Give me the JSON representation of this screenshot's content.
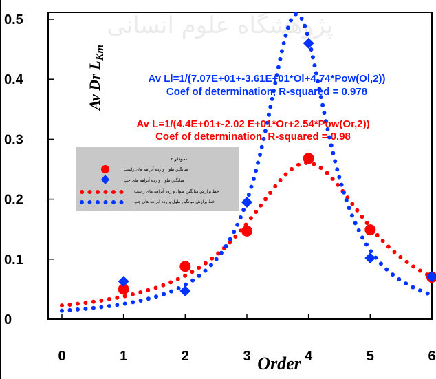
{
  "chart_data": {
    "type": "scatter",
    "xlabel": "Order",
    "ylabel_main": "Av Dr L",
    "ylabel_sub": "Km",
    "xlim": [
      0,
      6
    ],
    "ylim": [
      0,
      0.5
    ],
    "x_ticks": [
      0,
      1,
      2,
      3,
      4,
      5,
      6
    ],
    "y_ticks": [
      0,
      0.1,
      0.2,
      0.3,
      0.4,
      0.5
    ],
    "y_tick_labels": [
      "0",
      "0.1",
      "0.2",
      "0.3",
      "0.4",
      "0.5"
    ],
    "grid": false,
    "series": [
      {
        "key": "right_points",
        "name": "میانگین طول و رده آبراهه های راست",
        "marker": "circle",
        "color": "#ff0000",
        "x": [
          1,
          2,
          3,
          4,
          5,
          6
        ],
        "y": [
          0.05,
          0.088,
          0.147,
          0.268,
          0.149,
          0.07
        ]
      },
      {
        "key": "left_points",
        "name": "میانگین طول و رده آبراهه های چپ",
        "marker": "diamond",
        "color": "#0033ff",
        "x": [
          1,
          2,
          3,
          4,
          5,
          6
        ],
        "y": [
          0.063,
          0.047,
          0.195,
          0.46,
          0.102,
          0.071
        ]
      },
      {
        "key": "right_fit",
        "name": "خط برازش میانگین طول و رده آبراهه های راست",
        "marker": "dotted-line",
        "color": "#ff0000",
        "a": 44.0,
        "b": -20.2,
        "c": 2.54
      },
      {
        "key": "left_fit",
        "name": "خط برازش میانگین طول و رده آبراهه های چپ",
        "marker": "dotted-line",
        "color": "#0033ff",
        "a": 70.7,
        "b": -36.1,
        "c": 4.74
      }
    ],
    "annotations": {
      "left_eq": "Av Ll=1/(7.07E+01+-3.61E+01*Ol+4.74*Pow(Ol,2))",
      "left_r2": "Coef of determination, R-squared = 0.978",
      "right_eq": "Av L=1/(4.4E+01+-2.02 E+01*Or+2.54*Pow(Or,2))",
      "right_r2": "Coef of determination, R-squared = 0.98"
    },
    "legend": {
      "title": "نمودار ۳",
      "placement": "upper-left"
    },
    "colors": {
      "left": "#0033ff",
      "right": "#ff0000",
      "legend_bg": "#c8c8c8"
    }
  },
  "watermark": "پژوهشگاه علوم انسانی"
}
